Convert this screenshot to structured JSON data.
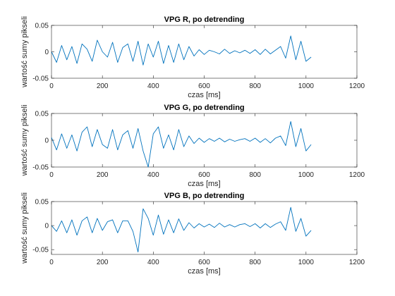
{
  "chart_data": [
    {
      "type": "line",
      "title": "VPG R, po detrending",
      "xlabel": "czas [ms]",
      "ylabel": "wartość sumy pikseli",
      "xlim": [
        0,
        1200
      ],
      "ylim": [
        -0.05,
        0.05
      ],
      "xticks": [
        0,
        200,
        400,
        600,
        800,
        1000,
        1200
      ],
      "xtick_labels": [
        "0",
        "200",
        "400",
        "600",
        "800",
        "1000",
        "1200"
      ],
      "yticks": [
        -0.05,
        0,
        0.05
      ],
      "ytick_labels": [
        "-0.05",
        "0",
        "0.05"
      ],
      "grid": false,
      "color": "#0072BD",
      "x": [
        0,
        20,
        40,
        60,
        80,
        100,
        120,
        140,
        160,
        180,
        200,
        220,
        240,
        260,
        280,
        300,
        320,
        340,
        360,
        380,
        400,
        420,
        440,
        460,
        480,
        500,
        520,
        540,
        560,
        580,
        600,
        620,
        640,
        660,
        680,
        700,
        720,
        740,
        760,
        780,
        800,
        820,
        840,
        860,
        880,
        900,
        920,
        940,
        960,
        980,
        1000,
        1020
      ],
      "y": [
        0.0,
        -0.02,
        0.012,
        -0.015,
        0.01,
        -0.022,
        0.015,
        0.005,
        -0.018,
        0.022,
        0.0,
        -0.01,
        0.018,
        -0.02,
        0.008,
        0.015,
        -0.018,
        0.02,
        -0.025,
        0.015,
        -0.01,
        0.02,
        -0.022,
        0.012,
        -0.02,
        0.015,
        -0.015,
        0.01,
        -0.008,
        0.004,
        -0.005,
        0.003,
        0.0,
        -0.004,
        0.005,
        -0.003,
        0.002,
        -0.002,
        0.003,
        -0.003,
        0.004,
        -0.005,
        0.005,
        -0.004,
        0.003,
        0.01,
        -0.012,
        0.03,
        -0.015,
        0.02,
        -0.018,
        -0.01
      ]
    },
    {
      "type": "line",
      "title": "VPG G, po detrending",
      "xlabel": "czas [ms]",
      "ylabel": "wartość sumy pikseli",
      "xlim": [
        0,
        1200
      ],
      "ylim": [
        -0.05,
        0.05
      ],
      "xticks": [
        0,
        200,
        400,
        600,
        800,
        1000,
        1200
      ],
      "xtick_labels": [
        "0",
        "200",
        "400",
        "600",
        "800",
        "1000",
        "1200"
      ],
      "yticks": [
        -0.05,
        0,
        0.05
      ],
      "ytick_labels": [
        "-0.05",
        "0",
        "0.05"
      ],
      "grid": false,
      "color": "#0072BD",
      "x": [
        0,
        20,
        40,
        60,
        80,
        100,
        120,
        140,
        160,
        180,
        200,
        220,
        240,
        260,
        280,
        300,
        320,
        340,
        360,
        380,
        400,
        420,
        440,
        460,
        480,
        500,
        520,
        540,
        560,
        580,
        600,
        620,
        640,
        660,
        680,
        700,
        720,
        740,
        760,
        780,
        800,
        820,
        840,
        860,
        880,
        900,
        920,
        940,
        960,
        980,
        1000,
        1020
      ],
      "y": [
        0.005,
        -0.018,
        0.012,
        -0.015,
        0.01,
        -0.02,
        0.015,
        0.025,
        -0.012,
        0.02,
        -0.008,
        -0.015,
        0.02,
        -0.018,
        0.01,
        0.018,
        -0.015,
        0.022,
        -0.02,
        -0.05,
        0.012,
        0.025,
        -0.015,
        0.01,
        -0.018,
        0.02,
        -0.012,
        0.008,
        -0.006,
        0.004,
        -0.004,
        0.003,
        -0.002,
        0.004,
        -0.003,
        0.002,
        -0.002,
        0.001,
        0.003,
        -0.002,
        0.004,
        -0.004,
        0.003,
        -0.005,
        0.004,
        0.008,
        -0.01,
        0.035,
        -0.012,
        0.022,
        -0.02,
        -0.008
      ]
    },
    {
      "type": "line",
      "title": "VPG B, po detrending",
      "xlabel": "czas [ms]",
      "ylabel": "wartość sumy pikseli",
      "xlim": [
        0,
        1200
      ],
      "ylim": [
        -0.06,
        0.05
      ],
      "xticks": [
        0,
        200,
        400,
        600,
        800,
        1000,
        1200
      ],
      "xtick_labels": [
        "0",
        "200",
        "400",
        "600",
        "800",
        "1000",
        "1200"
      ],
      "yticks": [
        -0.05,
        0,
        0.05
      ],
      "ytick_labels": [
        "-0.05",
        "0",
        "0.05"
      ],
      "grid": false,
      "color": "#0072BD",
      "x": [
        0,
        20,
        40,
        60,
        80,
        100,
        120,
        140,
        160,
        180,
        200,
        220,
        240,
        260,
        280,
        300,
        320,
        340,
        360,
        380,
        400,
        420,
        440,
        460,
        480,
        500,
        520,
        540,
        560,
        580,
        600,
        620,
        640,
        660,
        680,
        700,
        720,
        740,
        760,
        780,
        800,
        820,
        840,
        860,
        880,
        900,
        920,
        940,
        960,
        980,
        1000,
        1020
      ],
      "y": [
        0.0,
        -0.012,
        0.01,
        -0.015,
        0.012,
        -0.02,
        0.01,
        0.018,
        -0.015,
        0.015,
        -0.01,
        0.008,
        0.012,
        -0.015,
        0.01,
        0.01,
        -0.012,
        -0.055,
        0.035,
        0.015,
        -0.02,
        0.022,
        -0.018,
        0.012,
        -0.015,
        0.014,
        -0.01,
        0.006,
        -0.005,
        0.004,
        -0.003,
        0.003,
        -0.004,
        0.005,
        -0.003,
        0.002,
        -0.003,
        0.002,
        0.004,
        -0.002,
        0.004,
        -0.005,
        0.004,
        -0.004,
        0.003,
        0.008,
        -0.01,
        0.038,
        -0.012,
        0.015,
        -0.022,
        -0.01
      ]
    }
  ]
}
